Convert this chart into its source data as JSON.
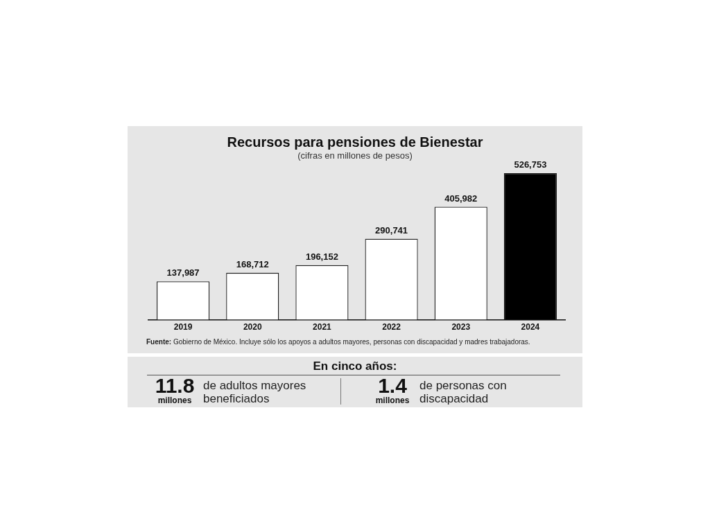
{
  "chart_data": [
    {
      "type": "bar",
      "title": "Recursos para pensiones de Bienestar",
      "subtitle": "(cifras en millones de pesos)",
      "categories": [
        "2019",
        "2020",
        "2021",
        "2022",
        "2023",
        "2024"
      ],
      "values": [
        137987,
        168712,
        196152,
        290741,
        405982,
        526753
      ],
      "value_labels": [
        "137,987",
        "168,712",
        "196,152",
        "290,741",
        "405,982",
        "526,753"
      ],
      "colors": [
        "#ffffff",
        "#ffffff",
        "#ffffff",
        "#ffffff",
        "#ffffff",
        "#000000"
      ],
      "annotations": [
        "Fuente: Gobierno de México. Incluye sólo los apoyos a adultos mayores, personas con discapacidad y madres trabajadoras."
      ]
    },
    {
      "type": "other",
      "title": "En cinco años:",
      "annotations": [
        "11.8",
        "millones",
        "de adultos mayores beneficiados",
        "1.4",
        "millones",
        "de personas con discapacidad"
      ]
    }
  ]
}
